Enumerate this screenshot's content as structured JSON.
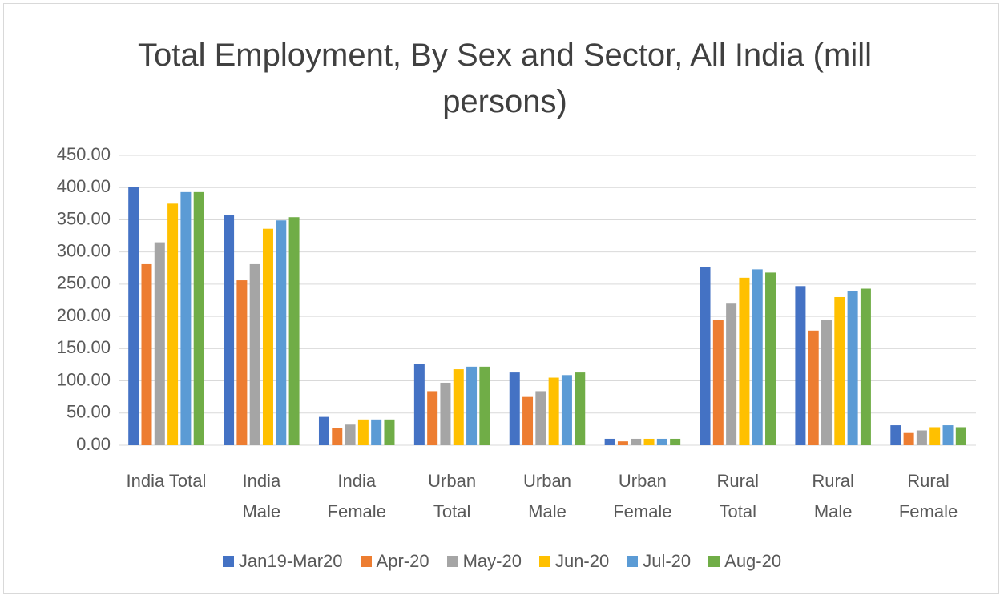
{
  "chart_data": {
    "type": "bar",
    "title": "Total Employment, By Sex and Sector, All India (mill persons)",
    "categories": [
      "India Total",
      "India Male",
      "India Female",
      "Urban Total",
      "Urban Male",
      "Urban Female",
      "Rural Total",
      "Rural Male",
      "Rural Female"
    ],
    "series": [
      {
        "name": "Jan19-Mar20",
        "color": "#4472c4",
        "values": [
          401,
          358,
          44,
          126,
          113,
          10,
          276,
          247,
          31
        ]
      },
      {
        "name": "Apr-20",
        "color": "#ed7d31",
        "values": [
          281,
          256,
          27,
          84,
          75,
          6,
          195,
          178,
          19
        ]
      },
      {
        "name": "May-20",
        "color": "#a5a5a5",
        "values": [
          315,
          281,
          32,
          97,
          84,
          10,
          221,
          194,
          23
        ]
      },
      {
        "name": "Jun-20",
        "color": "#ffc000",
        "values": [
          375,
          336,
          40,
          118,
          105,
          10,
          260,
          230,
          28
        ]
      },
      {
        "name": "Jul-20",
        "color": "#5b9bd5",
        "values": [
          393,
          349,
          40,
          122,
          109,
          10,
          273,
          239,
          31
        ]
      },
      {
        "name": "Aug-20",
        "color": "#70ad47",
        "values": [
          393,
          354,
          40,
          122,
          113,
          10,
          268,
          243,
          28
        ]
      }
    ],
    "ylim": [
      0,
      450
    ],
    "yticks": [
      {
        "value": 0,
        "label": "0.00"
      },
      {
        "value": 50,
        "label": "50.00"
      },
      {
        "value": 100,
        "label": "100.00"
      },
      {
        "value": 150,
        "label": "150.00"
      },
      {
        "value": 200,
        "label": "200.00"
      },
      {
        "value": 250,
        "label": "250.00"
      },
      {
        "value": 300,
        "label": "300.00"
      },
      {
        "value": 350,
        "label": "350.00"
      },
      {
        "value": 400,
        "label": "400.00"
      },
      {
        "value": 450,
        "label": "450.00"
      }
    ],
    "grid": true,
    "legend": "bottom"
  }
}
